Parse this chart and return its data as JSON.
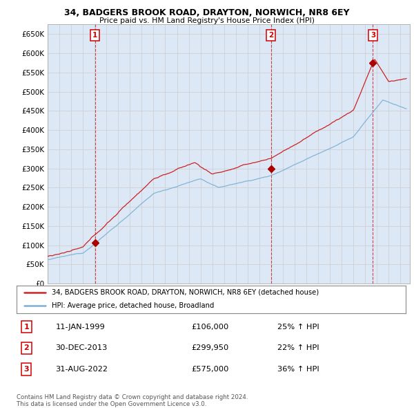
{
  "title": "34, BADGERS BROOK ROAD, DRAYTON, NORWICH, NR8 6EY",
  "subtitle": "Price paid vs. HM Land Registry's House Price Index (HPI)",
  "legend_line1": "34, BADGERS BROOK ROAD, DRAYTON, NORWICH, NR8 6EY (detached house)",
  "legend_line2": "HPI: Average price, detached house, Broadland",
  "transaction_label1": "1",
  "transaction_date1": "11-JAN-1999",
  "transaction_price1": "£106,000",
  "transaction_hpi1": "25% ↑ HPI",
  "transaction_label2": "2",
  "transaction_date2": "30-DEC-2013",
  "transaction_price2": "£299,950",
  "transaction_hpi2": "22% ↑ HPI",
  "transaction_label3": "3",
  "transaction_date3": "31-AUG-2022",
  "transaction_price3": "£575,000",
  "transaction_hpi3": "36% ↑ HPI",
  "footer": "Contains HM Land Registry data © Crown copyright and database right 2024.\nThis data is licensed under the Open Government Licence v3.0.",
  "price_line_color": "#cc2222",
  "hpi_line_color": "#7bafd4",
  "marker_color": "#aa0000",
  "vline_color": "#cc2222",
  "grid_color": "#cccccc",
  "chart_bg_color": "#dce8f5",
  "background_color": "#ffffff",
  "ylim_min": 0,
  "ylim_max": 675000,
  "yticks": [
    0,
    50000,
    100000,
    150000,
    200000,
    250000,
    300000,
    350000,
    400000,
    450000,
    500000,
    550000,
    600000,
    650000
  ],
  "sale_years": [
    1999.03,
    2013.99,
    2022.66
  ],
  "sale_prices": [
    106000,
    299950,
    575000
  ],
  "sale_numbers": [
    "1",
    "2",
    "3"
  ]
}
